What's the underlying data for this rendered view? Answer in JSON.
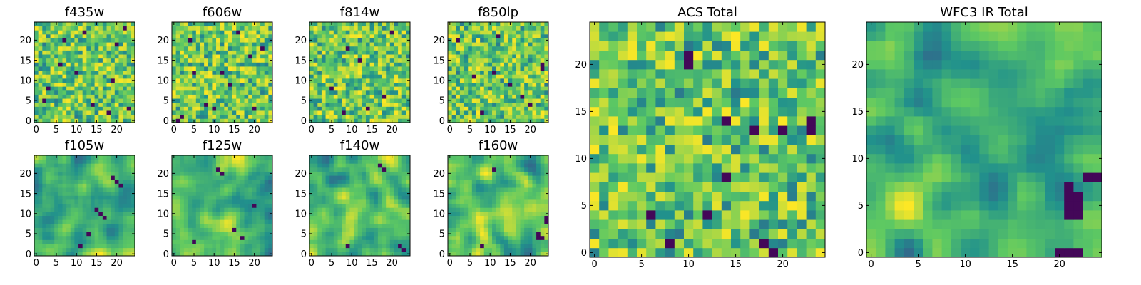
{
  "chart_data": {
    "type": "heatmap",
    "colormap": "viridis",
    "colormap_stops": [
      "#440154",
      "#3b528b",
      "#21918c",
      "#5ec962",
      "#fde725"
    ],
    "grid_size": 25,
    "panels": [
      {
        "id": "f435w",
        "title": "f435w",
        "xlim": [
          -0.5,
          24.5
        ],
        "ylim": [
          -0.5,
          24.5
        ],
        "xticks": [
          0,
          5,
          10,
          15,
          20
        ],
        "yticks": [
          0,
          5,
          10,
          15,
          20
        ],
        "pattern": "noise",
        "dark_cells": [
          [
            18,
            2
          ],
          [
            22,
            23
          ],
          [
            6,
            14
          ],
          [
            10,
            12
          ],
          [
            3,
            8
          ],
          [
            20,
            19
          ],
          [
            14,
            4
          ],
          [
            7,
            20
          ],
          [
            23,
            3
          ],
          [
            2,
            5
          ],
          [
            12,
            22
          ],
          [
            19,
            10
          ]
        ]
      },
      {
        "id": "f606w",
        "title": "f606w",
        "xlim": [
          -0.5,
          24.5
        ],
        "ylim": [
          -0.5,
          24.5
        ],
        "xticks": [
          0,
          5,
          10,
          15,
          20
        ],
        "yticks": [
          0,
          5,
          10,
          15,
          20
        ],
        "pattern": "noise",
        "dark_cells": [
          [
            8,
            4
          ],
          [
            1,
            0
          ],
          [
            2,
            1
          ],
          [
            12,
            12
          ],
          [
            19,
            16
          ],
          [
            16,
            22
          ],
          [
            20,
            3
          ],
          [
            5,
            12
          ],
          [
            14,
            9
          ],
          [
            10,
            3
          ],
          [
            22,
            18
          ],
          [
            4,
            20
          ]
        ]
      },
      {
        "id": "f814w",
        "title": "f814w",
        "xlim": [
          -0.5,
          24.5
        ],
        "ylim": [
          -0.5,
          24.5
        ],
        "xticks": [
          0,
          5,
          10,
          15,
          20
        ],
        "yticks": [
          0,
          5,
          10,
          15,
          20
        ],
        "pattern": "noise",
        "dark_cells": [
          [
            8,
            2
          ],
          [
            14,
            3
          ],
          [
            20,
            22
          ],
          [
            12,
            15
          ],
          [
            5,
            8
          ],
          [
            18,
            6
          ],
          [
            9,
            18
          ]
        ]
      },
      {
        "id": "f850lp",
        "title": "f850lp",
        "xlim": [
          -0.5,
          24.5
        ],
        "ylim": [
          -0.5,
          24.5
        ],
        "xticks": [
          0,
          5,
          10,
          15,
          20
        ],
        "yticks": [
          0,
          5,
          10,
          15,
          20
        ],
        "pattern": "noise",
        "dark_cells": [
          [
            23,
            14
          ],
          [
            23,
            13
          ],
          [
            11,
            12
          ],
          [
            8,
            2
          ],
          [
            15,
            9
          ],
          [
            2,
            20
          ],
          [
            18,
            6
          ],
          [
            12,
            21
          ],
          [
            6,
            11
          ],
          [
            20,
            4
          ]
        ]
      },
      {
        "id": "f105w",
        "title": "f105w",
        "xlim": [
          -0.5,
          24.5
        ],
        "ylim": [
          -0.5,
          24.5
        ],
        "xticks": [
          0,
          5,
          10,
          15,
          20
        ],
        "yticks": [
          0,
          5,
          10,
          15,
          20
        ],
        "pattern": "smooth",
        "dark_cells": [
          [
            20,
            18
          ],
          [
            19,
            19
          ],
          [
            16,
            10
          ],
          [
            17,
            9
          ],
          [
            15,
            11
          ],
          [
            11,
            2
          ],
          [
            21,
            17
          ],
          [
            13,
            5
          ]
        ]
      },
      {
        "id": "f125w",
        "title": "f125w",
        "xlim": [
          -0.5,
          24.5
        ],
        "ylim": [
          -0.5,
          24.5
        ],
        "xticks": [
          0,
          5,
          10,
          15,
          20
        ],
        "yticks": [
          0,
          5,
          10,
          15,
          20
        ],
        "pattern": "smooth",
        "dark_cells": [
          [
            11,
            21
          ],
          [
            12,
            20
          ],
          [
            15,
            6
          ],
          [
            17,
            4
          ],
          [
            5,
            3
          ],
          [
            20,
            12
          ]
        ]
      },
      {
        "id": "f140w",
        "title": "f140w",
        "xlim": [
          -0.5,
          24.5
        ],
        "ylim": [
          -0.5,
          24.5
        ],
        "xticks": [
          0,
          5,
          10,
          15,
          20
        ],
        "yticks": [
          0,
          5,
          10,
          15,
          20
        ],
        "pattern": "smooth",
        "dark_cells": [
          [
            22,
            2
          ],
          [
            23,
            1
          ],
          [
            9,
            2
          ],
          [
            17,
            22
          ],
          [
            18,
            21
          ]
        ]
      },
      {
        "id": "f160w",
        "title": "f160w",
        "xlim": [
          -0.5,
          24.5
        ],
        "ylim": [
          -0.5,
          24.5
        ],
        "xticks": [
          0,
          5,
          10,
          15,
          20
        ],
        "yticks": [
          0,
          5,
          10,
          15,
          20
        ],
        "pattern": "smooth",
        "dark_cells": [
          [
            22,
            5
          ],
          [
            23,
            4
          ],
          [
            22,
            4
          ],
          [
            24,
            9
          ],
          [
            24,
            8
          ],
          [
            8,
            2
          ],
          [
            11,
            21
          ]
        ]
      },
      {
        "id": "acs-total",
        "title": "ACS Total",
        "xlim": [
          -0.5,
          24.5
        ],
        "ylim": [
          -0.5,
          24.5
        ],
        "xticks": [
          0,
          5,
          10,
          15,
          20
        ],
        "yticks": [
          0,
          5,
          10,
          15,
          20
        ],
        "pattern": "noise",
        "dark_cells": [
          [
            10,
            21
          ],
          [
            10,
            20
          ],
          [
            14,
            14
          ],
          [
            17,
            13
          ],
          [
            20,
            13
          ],
          [
            23,
            14
          ],
          [
            23,
            13
          ],
          [
            14,
            8
          ],
          [
            6,
            4
          ],
          [
            12,
            4
          ],
          [
            8,
            1
          ],
          [
            19,
            0
          ],
          [
            18,
            1
          ]
        ]
      },
      {
        "id": "wfc3-ir-total",
        "title": "WFC3 IR Total",
        "xlim": [
          -0.5,
          24.5
        ],
        "ylim": [
          -0.5,
          24.5
        ],
        "xticks": [
          0,
          5,
          10,
          15,
          20
        ],
        "yticks": [
          0,
          5,
          10,
          15,
          20
        ],
        "pattern": "smooth",
        "dark_cells": [
          [
            21,
            7
          ],
          [
            21,
            6
          ],
          [
            21,
            5
          ],
          [
            22,
            6
          ],
          [
            22,
            5
          ],
          [
            21,
            4
          ],
          [
            22,
            4
          ],
          [
            23,
            8
          ],
          [
            24,
            8
          ],
          [
            20,
            0
          ],
          [
            21,
            0
          ],
          [
            22,
            0
          ]
        ]
      }
    ]
  }
}
